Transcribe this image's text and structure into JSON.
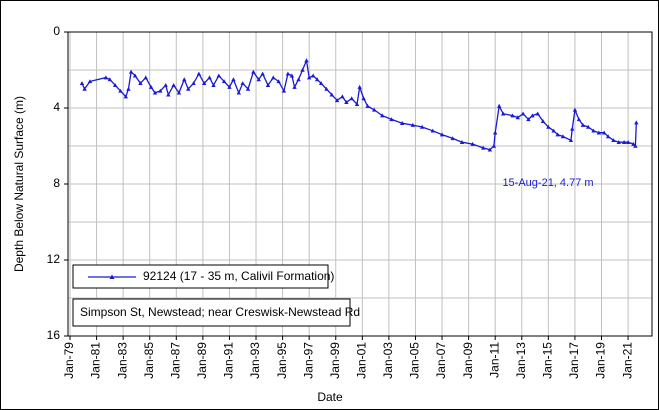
{
  "chart_data": {
    "type": "line",
    "x_label": "Date",
    "y_label": "Depth Below Natural Surface (m)",
    "xlim": [
      1978.85,
      2022.8
    ],
    "ylim": [
      0,
      16
    ],
    "y_inverted": true,
    "grid": true,
    "yticks": [
      0,
      4,
      8,
      12,
      16
    ],
    "minor_yticks": [
      2,
      6,
      10,
      14
    ],
    "xticks": [
      {
        "value": 1979,
        "label": "Jan-79"
      },
      {
        "value": 1981,
        "label": "Jan-81"
      },
      {
        "value": 1983,
        "label": "Jan-83"
      },
      {
        "value": 1985,
        "label": "Jan-85"
      },
      {
        "value": 1987,
        "label": "Jan-87"
      },
      {
        "value": 1989,
        "label": "Jan-89"
      },
      {
        "value": 1991,
        "label": "Jan-91"
      },
      {
        "value": 1993,
        "label": "Jan-93"
      },
      {
        "value": 1995,
        "label": "Jan-95"
      },
      {
        "value": 1997,
        "label": "Jan-97"
      },
      {
        "value": 1999,
        "label": "Jan-99"
      },
      {
        "value": 2001,
        "label": "Jan-01"
      },
      {
        "value": 2003,
        "label": "Jan-03"
      },
      {
        "value": 2005,
        "label": "Jan-05"
      },
      {
        "value": 2007,
        "label": "Jan-07"
      },
      {
        "value": 2009,
        "label": "Jan-09"
      },
      {
        "value": 2011,
        "label": "Jan-11"
      },
      {
        "value": 2013,
        "label": "Jan-13"
      },
      {
        "value": 2015,
        "label": "Jan-15"
      },
      {
        "value": 2017,
        "label": "Jan-17"
      },
      {
        "value": 2019,
        "label": "Jan-19"
      },
      {
        "value": 2021,
        "label": "Jan-21"
      }
    ],
    "annotation": "15-Aug-21, 4.77 m",
    "note": "Simpson St, Newstead; near Creswisk-Newstead Rd",
    "series": [
      {
        "name": "92124 (17 - 35 m, Calivil Formation)",
        "color": "#1a1ad6",
        "x": [
          1979.9,
          1980.1,
          1980.5,
          1981.7,
          1982.0,
          1982.4,
          1982.8,
          1983.2,
          1983.4,
          1983.6,
          1983.9,
          1984.3,
          1984.7,
          1985.1,
          1985.4,
          1985.8,
          1986.2,
          1986.4,
          1986.8,
          1987.2,
          1987.6,
          1987.9,
          1988.3,
          1988.7,
          1989.1,
          1989.5,
          1989.8,
          1990.2,
          1990.6,
          1991.0,
          1991.3,
          1991.7,
          1992.0,
          1992.4,
          1992.8,
          1993.2,
          1993.5,
          1993.9,
          1994.3,
          1994.7,
          1995.1,
          1995.4,
          1995.7,
          1995.9,
          1996.2,
          1996.5,
          1996.8,
          1997.0,
          1997.3,
          1997.6,
          1997.9,
          1998.3,
          1998.7,
          1999.1,
          1999.5,
          1999.8,
          2000.2,
          2000.6,
          2000.8,
          2001.1,
          2001.4,
          2001.9,
          2002.5,
          2003.2,
          2004.0,
          2004.8,
          2005.5,
          2006.3,
          2007.0,
          2007.8,
          2008.5,
          2009.3,
          2010.1,
          2010.6,
          2010.9,
          2011.0,
          2011.3,
          2011.6,
          2012.3,
          2012.7,
          2013.1,
          2013.5,
          2013.8,
          2014.2,
          2014.6,
          2015.0,
          2015.4,
          2015.7,
          2016.1,
          2016.7,
          2016.8,
          2017.0,
          2017.3,
          2017.6,
          2018.0,
          2018.4,
          2018.8,
          2019.2,
          2019.5,
          2019.9,
          2020.3,
          2020.7,
          2021.0,
          2021.4,
          2021.55,
          2021.62
        ],
        "values": [
          2.7,
          3.0,
          2.6,
          2.4,
          2.5,
          2.8,
          3.1,
          3.4,
          3.0,
          2.1,
          2.3,
          2.7,
          2.4,
          2.9,
          3.2,
          3.1,
          2.8,
          3.3,
          2.8,
          3.2,
          2.5,
          3.0,
          2.7,
          2.2,
          2.7,
          2.4,
          2.8,
          2.3,
          2.6,
          2.9,
          2.5,
          3.2,
          2.7,
          3.0,
          2.1,
          2.5,
          2.2,
          2.8,
          2.4,
          2.6,
          3.1,
          2.2,
          2.3,
          2.9,
          2.5,
          2.0,
          1.5,
          2.4,
          2.3,
          2.5,
          2.7,
          3.0,
          3.3,
          3.6,
          3.4,
          3.7,
          3.5,
          3.8,
          2.9,
          3.5,
          3.9,
          4.1,
          4.4,
          4.6,
          4.8,
          4.9,
          5.0,
          5.2,
          5.4,
          5.6,
          5.8,
          5.9,
          6.1,
          6.2,
          6.0,
          5.3,
          3.9,
          4.3,
          4.4,
          4.5,
          4.3,
          4.6,
          4.4,
          4.3,
          4.7,
          5.0,
          5.2,
          5.4,
          5.5,
          5.7,
          5.1,
          4.1,
          4.6,
          4.9,
          5.0,
          5.2,
          5.3,
          5.3,
          5.5,
          5.7,
          5.8,
          5.8,
          5.8,
          5.9,
          6.0,
          4.77
        ]
      }
    ]
  }
}
